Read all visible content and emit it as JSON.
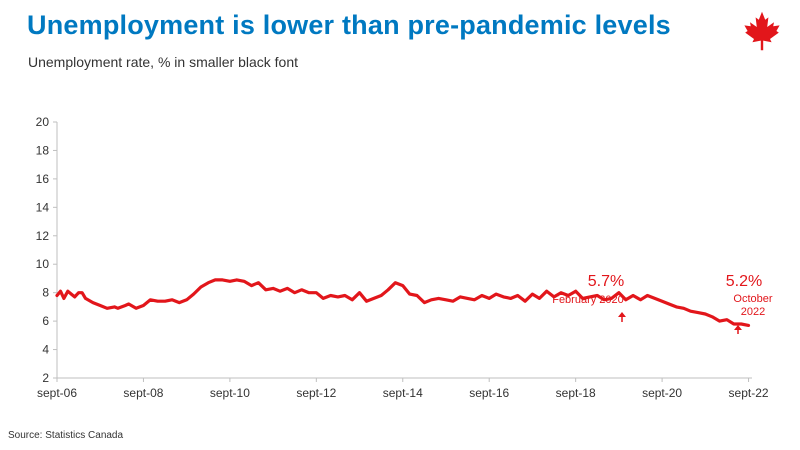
{
  "header": {
    "title": "Unemployment is lower than pre-pandemic levels",
    "subtitle": "Unemployment rate, % in smaller black font"
  },
  "footer": {
    "source": "Source: Statistics Canada"
  },
  "brand": {
    "logo_icon": "maple-leaf-icon",
    "accent_color": "#e2161b",
    "title_color": "#0079c1"
  },
  "chart_data": {
    "type": "line",
    "title": "",
    "xlabel": "",
    "ylabel": "",
    "ylim": [
      2,
      20
    ],
    "yticks": [
      2,
      4,
      6,
      8,
      10,
      12,
      14,
      16,
      18,
      20
    ],
    "xticks": [
      {
        "label": "sept-06",
        "t": 2006.67
      },
      {
        "label": "sept-08",
        "t": 2008.67
      },
      {
        "label": "sept-10",
        "t": 2010.67
      },
      {
        "label": "sept-12",
        "t": 2012.67
      },
      {
        "label": "sept-14",
        "t": 2014.67
      },
      {
        "label": "sept-16",
        "t": 2016.67
      },
      {
        "label": "sept-18",
        "t": 2018.67
      },
      {
        "label": "sept-20",
        "t": 2020.67
      },
      {
        "label": "sept-22",
        "t": 2022.67
      }
    ],
    "xlim": [
      2006.67,
      2022.75
    ],
    "series": [
      {
        "color": "#e2161b",
        "points": [
          [
            2006.67,
            7.8
          ],
          [
            2006.75,
            8.1
          ],
          [
            2006.83,
            7.6
          ],
          [
            2006.92,
            8.1
          ],
          [
            2007.0,
            7.9
          ],
          [
            2007.08,
            7.7
          ],
          [
            2007.17,
            8.0
          ],
          [
            2007.25,
            8.0
          ],
          [
            2007.33,
            7.6
          ],
          [
            2007.5,
            7.3
          ],
          [
            2007.67,
            7.1
          ],
          [
            2007.83,
            6.9
          ],
          [
            2008.0,
            7.0
          ],
          [
            2008.08,
            6.9
          ],
          [
            2008.25,
            7.1
          ],
          [
            2008.33,
            7.2
          ],
          [
            2008.5,
            6.9
          ],
          [
            2008.67,
            7.1
          ],
          [
            2008.83,
            7.5
          ],
          [
            2009.0,
            7.4
          ],
          [
            2009.17,
            7.4
          ],
          [
            2009.33,
            7.5
          ],
          [
            2009.5,
            7.3
          ],
          [
            2009.67,
            7.5
          ],
          [
            2009.83,
            7.9
          ],
          [
            2010.0,
            8.4
          ],
          [
            2010.17,
            8.7
          ],
          [
            2010.33,
            8.9
          ],
          [
            2010.5,
            8.9
          ],
          [
            2010.67,
            8.8
          ],
          [
            2010.83,
            8.9
          ],
          [
            2011.0,
            8.8
          ],
          [
            2011.17,
            8.5
          ],
          [
            2011.33,
            8.7
          ],
          [
            2011.5,
            8.2
          ],
          [
            2011.67,
            8.3
          ],
          [
            2011.83,
            8.1
          ],
          [
            2012.0,
            8.3
          ],
          [
            2012.17,
            8.0
          ],
          [
            2012.33,
            8.2
          ],
          [
            2012.5,
            8.0
          ],
          [
            2012.67,
            8.0
          ],
          [
            2012.83,
            7.6
          ],
          [
            2013.0,
            7.8
          ],
          [
            2013.17,
            7.7
          ],
          [
            2013.33,
            7.8
          ],
          [
            2013.5,
            7.5
          ],
          [
            2013.67,
            8.0
          ],
          [
            2013.83,
            7.4
          ],
          [
            2014.0,
            7.6
          ],
          [
            2014.17,
            7.8
          ],
          [
            2014.33,
            8.2
          ],
          [
            2014.5,
            8.7
          ],
          [
            2014.67,
            8.5
          ],
          [
            2014.83,
            7.9
          ],
          [
            2015.0,
            7.8
          ],
          [
            2015.17,
            7.3
          ],
          [
            2015.33,
            7.5
          ],
          [
            2015.5,
            7.6
          ],
          [
            2015.67,
            7.5
          ],
          [
            2015.83,
            7.4
          ],
          [
            2016.0,
            7.7
          ],
          [
            2016.17,
            7.6
          ],
          [
            2016.33,
            7.5
          ],
          [
            2016.5,
            7.8
          ],
          [
            2016.67,
            7.6
          ],
          [
            2016.83,
            7.9
          ],
          [
            2017.0,
            7.7
          ],
          [
            2017.17,
            7.6
          ],
          [
            2017.33,
            7.8
          ],
          [
            2017.5,
            7.4
          ],
          [
            2017.67,
            7.9
          ],
          [
            2017.83,
            7.6
          ],
          [
            2018.0,
            8.1
          ],
          [
            2018.17,
            7.7
          ],
          [
            2018.33,
            8.0
          ],
          [
            2018.5,
            7.8
          ],
          [
            2018.67,
            8.1
          ],
          [
            2018.83,
            7.6
          ],
          [
            2019.0,
            7.7
          ],
          [
            2019.17,
            7.8
          ],
          [
            2019.33,
            7.5
          ],
          [
            2019.5,
            7.6
          ],
          [
            2019.67,
            8.0
          ],
          [
            2019.83,
            7.5
          ],
          [
            2020.0,
            7.8
          ],
          [
            2020.17,
            7.5
          ],
          [
            2020.33,
            7.8
          ],
          [
            2020.5,
            7.6
          ],
          [
            2020.67,
            7.4
          ],
          [
            2020.83,
            7.2
          ],
          [
            2021.0,
            7.0
          ],
          [
            2021.17,
            6.9
          ],
          [
            2021.33,
            6.7
          ],
          [
            2021.5,
            6.6
          ],
          [
            2021.67,
            6.5
          ],
          [
            2021.83,
            6.3
          ],
          [
            2022.0,
            6.0
          ],
          [
            2022.17,
            6.1
          ],
          [
            2022.33,
            5.8
          ],
          [
            2022.5,
            5.8
          ],
          [
            2022.67,
            5.7
          ]
        ]
      }
    ],
    "annotations": [
      {
        "value": "5.7%",
        "label": "February 2020"
      },
      {
        "value": "5.2%",
        "label_line1": "October",
        "label_line2": "2022"
      }
    ]
  }
}
